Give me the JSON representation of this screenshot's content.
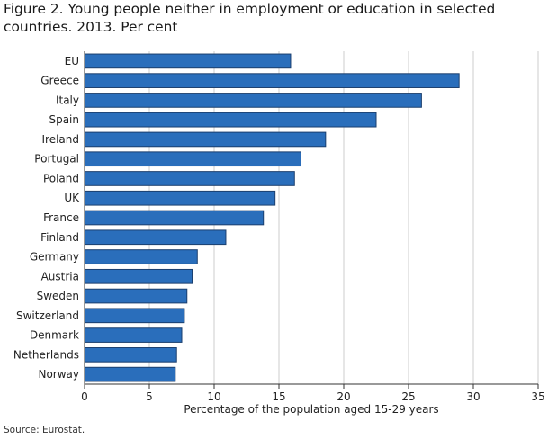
{
  "figure": {
    "title": "Figure 2. Young people neither in employment or education in selected countries. 2013. Per cent",
    "source": "Source: Eurostat."
  },
  "chart_data": {
    "type": "bar",
    "orientation": "horizontal",
    "categories": [
      "EU",
      "Greece",
      "Italy",
      "Spain",
      "Ireland",
      "Portugal",
      "Poland",
      "UK",
      "France",
      "Finland",
      "Germany",
      "Austria",
      "Sweden",
      "Switzerland",
      "Denmark",
      "Netherlands",
      "Norway"
    ],
    "values": [
      15.9,
      28.9,
      26.0,
      22.5,
      18.6,
      16.7,
      16.2,
      14.7,
      13.8,
      10.9,
      8.7,
      8.3,
      7.9,
      7.7,
      7.5,
      7.1,
      7.0
    ],
    "xlabel": "Percentage of the population aged 15-29 years",
    "ylabel": "",
    "xlim": [
      0,
      35
    ],
    "xticks": [
      0,
      5,
      10,
      15,
      20,
      25,
      30,
      35
    ],
    "grid": "vertical",
    "bar_color": "#2a6ebb",
    "bar_edge_color": "#1b3f6e",
    "grid_color": "#cccccc"
  }
}
